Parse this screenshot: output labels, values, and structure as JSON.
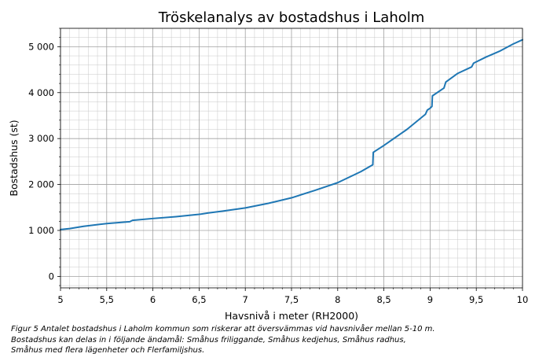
{
  "chart_data": {
    "type": "line",
    "title": "Tröskelanalys av bostadshus i Laholm",
    "xlabel": "Havsnivå i meter (RH2000)",
    "ylabel": "Bostadshus (st)",
    "xlim": [
      5,
      10
    ],
    "ylim": [
      -250,
      5400
    ],
    "x_ticks": [
      5,
      5.5,
      6,
      6.5,
      7,
      7.5,
      8,
      8.5,
      9,
      9.5,
      10
    ],
    "x_tick_labels": [
      "5",
      "5,5",
      "6",
      "6,5",
      "7",
      "7,5",
      "8",
      "8,5",
      "9",
      "9,5",
      "10"
    ],
    "y_ticks": [
      0,
      1000,
      2000,
      3000,
      4000,
      5000
    ],
    "y_tick_labels": [
      "0",
      "1 000",
      "2 000",
      "3 000",
      "4 000",
      "5 000"
    ],
    "grid": "major and minor",
    "color": "#1f77b4",
    "series": [
      {
        "x": [
          5.0,
          5.1,
          5.25,
          5.5,
          5.75,
          5.78,
          6.0,
          6.25,
          6.5,
          6.6,
          6.75,
          7.0,
          7.25,
          7.5,
          7.75,
          8.0,
          8.25,
          8.38,
          8.385,
          8.5,
          8.75,
          8.95,
          8.97,
          9.0,
          9.02,
          9.025,
          9.15,
          9.17,
          9.3,
          9.45,
          9.47,
          9.6,
          9.75,
          9.9,
          10.0
        ],
        "y": [
          1020,
          1040,
          1090,
          1150,
          1190,
          1220,
          1260,
          1300,
          1350,
          1380,
          1420,
          1490,
          1590,
          1710,
          1870,
          2040,
          2280,
          2430,
          2700,
          2850,
          3200,
          3530,
          3620,
          3660,
          3700,
          3930,
          4100,
          4230,
          4420,
          4560,
          4640,
          4770,
          4900,
          5060,
          5150
        ]
      }
    ]
  },
  "caption": {
    "line1": "Figur 5 Antalet bostadshus i Laholm kommun som riskerar att översvämmas vid havsnivåer mellan 5-10 m.",
    "line2": "Bostadshus kan delas in i följande ändamål: Småhus friliggande, Småhus kedjehus, Småhus radhus,",
    "line3": "Småhus med flera lägenheter och Flerfamiljshus."
  }
}
